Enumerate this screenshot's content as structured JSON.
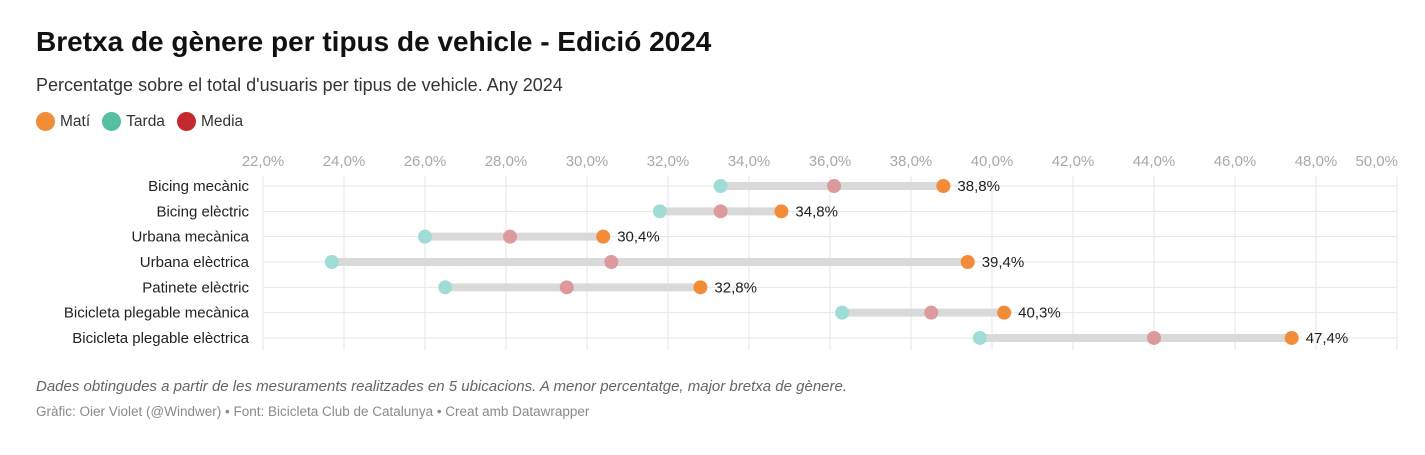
{
  "title": "Bretxa de gènere per tipus de vehicle - Edició 2024",
  "subtitle": "Percentatge sobre el total d'usuaris per tipus de vehicle. Any 2024",
  "legend": [
    {
      "label": "Matí",
      "color": "#f28c38"
    },
    {
      "label": "Tarda",
      "color": "#55bfa0"
    },
    {
      "label": "Media",
      "color": "#c5282f"
    }
  ],
  "chart_data": {
    "type": "dot-range",
    "xlim": [
      22,
      50
    ],
    "x_ticks": [
      "22,0%",
      "24,0%",
      "26,0%",
      "28,0%",
      "30,0%",
      "32,0%",
      "34,0%",
      "36,0%",
      "38,0%",
      "40,0%",
      "42,0%",
      "44,0%",
      "46,0%",
      "48,0%",
      "50,0%"
    ],
    "grid": true,
    "legend_position": "top-left",
    "categories": [
      "Bicing mecànic",
      "Bicing elèctric",
      "Urbana mecànica",
      "Urbana elèctrica",
      "Patinete elèctric",
      "Bicicleta plegable mecànica",
      "Bicicleta plegable elèctrica"
    ],
    "series": [
      {
        "name": "Matí",
        "values": [
          38.8,
          34.8,
          30.4,
          39.4,
          32.8,
          40.3,
          47.4
        ],
        "labels": [
          "38,8%",
          "34,8%",
          "30,4%",
          "39,4%",
          "32,8%",
          "40,3%",
          "47,4%"
        ]
      },
      {
        "name": "Tarda",
        "values": [
          33.3,
          31.8,
          26.0,
          23.7,
          26.5,
          36.3,
          39.7
        ]
      },
      {
        "name": "Media",
        "values": [
          36.1,
          33.3,
          28.1,
          30.6,
          29.5,
          38.5,
          44.0
        ]
      }
    ]
  },
  "note": "Dades obtingudes a partir de les mesuraments realitzades en 5 ubicacions. A menor percentatge, major bretxa de gènere.",
  "source": "Gràfic: Oier Violet (@Windwer) • Font: Bicicleta Club de Catalunya • Creat amb Datawrapper",
  "colors": {
    "range_bar": "#d9d9d9",
    "grid": "#e6e6e6",
    "tarda_marker": "#9fdcd6",
    "media_marker": "#dc9a9c"
  }
}
